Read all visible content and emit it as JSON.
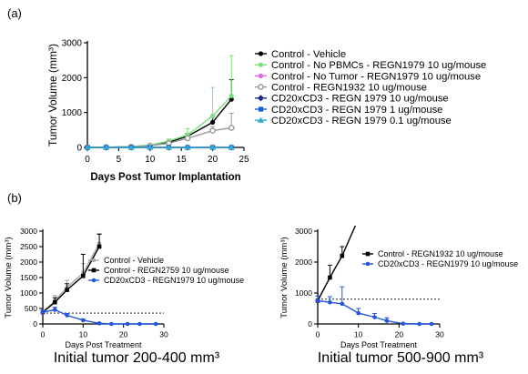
{
  "panel_labels": [
    "(a)",
    "(b)"
  ],
  "captions": [
    "Initial tumor 200-400 mm³",
    "Initial tumor 500-900 mm³"
  ],
  "chart_data": [
    {
      "type": "line",
      "panel": "(a)",
      "xlabel": "Days Post Tumor Implantation",
      "ylabel": "Tumor Volume (mm³)",
      "xlim": [
        0,
        25
      ],
      "ylim": [
        0,
        3000
      ],
      "xticks": [
        0,
        5,
        10,
        15,
        20,
        25
      ],
      "yticks": [
        0,
        1000,
        2000,
        3000
      ],
      "legend_position": "right",
      "series": [
        {
          "name": "Control - Vehicle",
          "color": "#000000",
          "marker": "circle-filled",
          "x": [
            0,
            3,
            7,
            10,
            13,
            16,
            20,
            23
          ],
          "y": [
            0,
            5,
            20,
            60,
            150,
            320,
            720,
            1380
          ],
          "err": [
            0,
            0,
            0,
            20,
            40,
            80,
            180,
            560
          ]
        },
        {
          "name": "Control - No PBMCs - REGN1979 10 ug/mouse",
          "color": "#7be07b",
          "marker": "circle-filled",
          "x": [
            0,
            3,
            7,
            10,
            13,
            16,
            20,
            23
          ],
          "y": [
            0,
            5,
            20,
            70,
            180,
            360,
            900,
            1480
          ],
          "err": [
            0,
            0,
            0,
            20,
            60,
            180,
            820,
            1150
          ]
        },
        {
          "name": "Control - No Tumor - REGN1979 10 ug/mouse",
          "color": "#dd66dd",
          "marker": "circle-filled",
          "x": [
            0,
            3,
            7,
            10,
            13,
            16,
            20,
            23
          ],
          "y": [
            0,
            0,
            0,
            0,
            0,
            0,
            0,
            0
          ],
          "err": []
        },
        {
          "name": "Control - REGN1932 10 ug/mouse",
          "color": "#999999",
          "marker": "circle-open",
          "x": [
            0,
            3,
            7,
            10,
            13,
            16,
            20,
            23
          ],
          "y": [
            0,
            5,
            15,
            50,
            120,
            260,
            480,
            560
          ],
          "err": [
            0,
            0,
            0,
            15,
            30,
            60,
            120,
            420
          ]
        },
        {
          "name": "CD20xCD3 - REGN 1979 10 ug/mouse",
          "color": "#1a2a80",
          "marker": "diamond-filled",
          "x": [
            0,
            3,
            7,
            10,
            13,
            16,
            20,
            23
          ],
          "y": [
            0,
            0,
            0,
            0,
            0,
            0,
            0,
            0
          ],
          "err": []
        },
        {
          "name": "CD20xCD3 - REGN 1979 1 ug/mouse",
          "color": "#2255dd",
          "marker": "square-filled",
          "x": [
            0,
            3,
            7,
            10,
            13,
            16,
            20,
            23
          ],
          "y": [
            0,
            0,
            0,
            0,
            0,
            0,
            0,
            0
          ],
          "err": []
        },
        {
          "name": "CD20xCD3 - REGN 1979 0.1 ug/mouse",
          "color": "#33aacc",
          "marker": "triangle-filled",
          "x": [
            0,
            3,
            7,
            10,
            13,
            16,
            20,
            23
          ],
          "y": [
            0,
            0,
            0,
            0,
            0,
            0,
            0,
            0
          ],
          "err": []
        }
      ]
    },
    {
      "type": "line",
      "panel": "(b) left",
      "xlabel": "Days Post Treatment",
      "ylabel": "Tumor Volume (mm³)",
      "xlim": [
        0,
        30
      ],
      "ylim": [
        0,
        3000
      ],
      "xticks": [
        0,
        10,
        20,
        30
      ],
      "yticks": [
        0,
        500,
        1000,
        1500,
        2000,
        2500,
        3000
      ],
      "reference_line": 350,
      "legend_position": "upper-right",
      "series": [
        {
          "name": "Control - Vehicle",
          "color": "#aaaaaa",
          "marker": "circle-filled",
          "x": [
            0,
            3,
            6,
            10,
            14
          ],
          "y": [
            380,
            760,
            1180,
            1650,
            2600
          ],
          "err": [
            60,
            160,
            230,
            300,
            330
          ]
        },
        {
          "name": "Control - REGN2759 10 ug/mouse",
          "color": "#000000",
          "marker": "square-filled",
          "x": [
            0,
            3,
            6,
            10,
            14
          ],
          "y": [
            380,
            700,
            1100,
            1550,
            2500
          ],
          "err": [
            60,
            150,
            200,
            700,
            400
          ]
        },
        {
          "name": "CD20xCD3 - REGN1979 10 ug/mouse",
          "color": "#2255dd",
          "marker": "circle-filled",
          "x": [
            0,
            3,
            6,
            10,
            14,
            17,
            21,
            24,
            28
          ],
          "y": [
            380,
            460,
            280,
            120,
            20,
            0,
            0,
            0,
            0
          ],
          "err": [
            60,
            80,
            60,
            40,
            15,
            0,
            0,
            0,
            0
          ]
        }
      ]
    },
    {
      "type": "line",
      "panel": "(b) right",
      "xlabel": "Days Post Treatment",
      "ylabel": "Tumor Volume (mm³)",
      "xlim": [
        0,
        30
      ],
      "ylim": [
        0,
        3000
      ],
      "xticks": [
        0,
        10,
        20,
        30
      ],
      "yticks": [
        0,
        1000,
        2000,
        3000
      ],
      "reference_line": 800,
      "legend_position": "upper-right",
      "series": [
        {
          "name": "Control - REGN1932 10 ug/mouse",
          "color": "#000000",
          "marker": "square-filled",
          "x": [
            0,
            3,
            6,
            10
          ],
          "y": [
            750,
            1500,
            2200,
            3400
          ],
          "err": [
            150,
            400,
            300,
            0
          ]
        },
        {
          "name": "CD20xCD3 - REGN1979 10 ug/mouse",
          "color": "#2255dd",
          "marker": "circle-filled",
          "x": [
            0,
            3,
            6,
            10,
            14,
            17,
            21,
            25,
            28
          ],
          "y": [
            750,
            700,
            650,
            350,
            220,
            100,
            10,
            0,
            0
          ],
          "err": [
            150,
            180,
            550,
            150,
            120,
            100,
            20,
            0,
            0
          ]
        }
      ]
    }
  ]
}
